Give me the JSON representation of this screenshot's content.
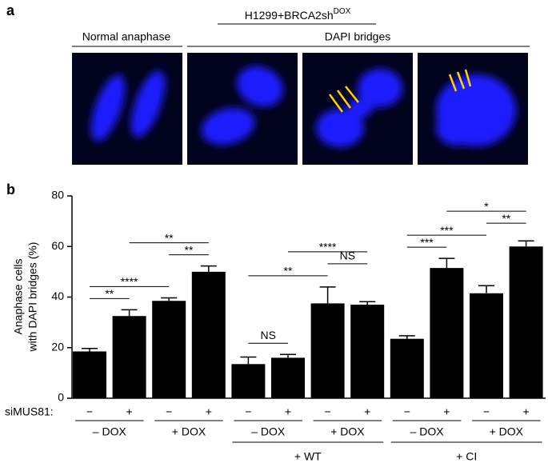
{
  "panel_a": {
    "label": "a",
    "title": "H1299+BRCA2sh",
    "title_sup": "DOX",
    "normal_label": "Normal  anaphase",
    "bridges_label": "DAPI bridges"
  },
  "chart_data": {
    "type": "bar",
    "panel_label": "b",
    "ylabel": [
      "Anaphase cells",
      "with DAPI bridges (%)"
    ],
    "row_label": "siMUS81:",
    "categories": [
      "−",
      "+",
      "−",
      "+",
      "−",
      "+",
      "−",
      "+",
      "−",
      "+",
      "−",
      "+"
    ],
    "values": [
      18.5,
      32.5,
      38.5,
      50,
      13.5,
      16,
      37.5,
      37,
      23.5,
      51.5,
      41.5,
      60
    ],
    "errors": [
      1.2,
      2.5,
      1.2,
      2.3,
      2.8,
      1.3,
      6.5,
      1.2,
      1.2,
      3.8,
      3,
      2.2
    ],
    "color": "#000000",
    "pair_labels": [
      "– DOX",
      "+ DOX",
      "– DOX",
      "+ DOX",
      "– DOX",
      "+ DOX"
    ],
    "group_labels": [
      null,
      "+ WT",
      "+ CI"
    ],
    "ylim": [
      0,
      80
    ],
    "yticks": [
      0,
      20,
      40,
      60,
      80
    ],
    "significance": [
      {
        "bars": [
          0,
          1
        ],
        "label": "**"
      },
      {
        "bars": [
          0,
          2
        ],
        "label": "****"
      },
      {
        "bars": [
          2,
          3
        ],
        "label": "**"
      },
      {
        "bars": [
          1,
          3
        ],
        "label": "**"
      },
      {
        "bars": [
          4,
          5
        ],
        "label": "NS"
      },
      {
        "bars": [
          4,
          6
        ],
        "label": "**"
      },
      {
        "bars": [
          6,
          7
        ],
        "label": "NS"
      },
      {
        "bars": [
          5,
          7
        ],
        "label": "****"
      },
      {
        "bars": [
          8,
          9
        ],
        "label": "***"
      },
      {
        "bars": [
          8,
          10
        ],
        "label": "***"
      },
      {
        "bars": [
          10,
          11
        ],
        "label": "**"
      },
      {
        "bars": [
          9,
          11
        ],
        "label": "*"
      }
    ]
  }
}
